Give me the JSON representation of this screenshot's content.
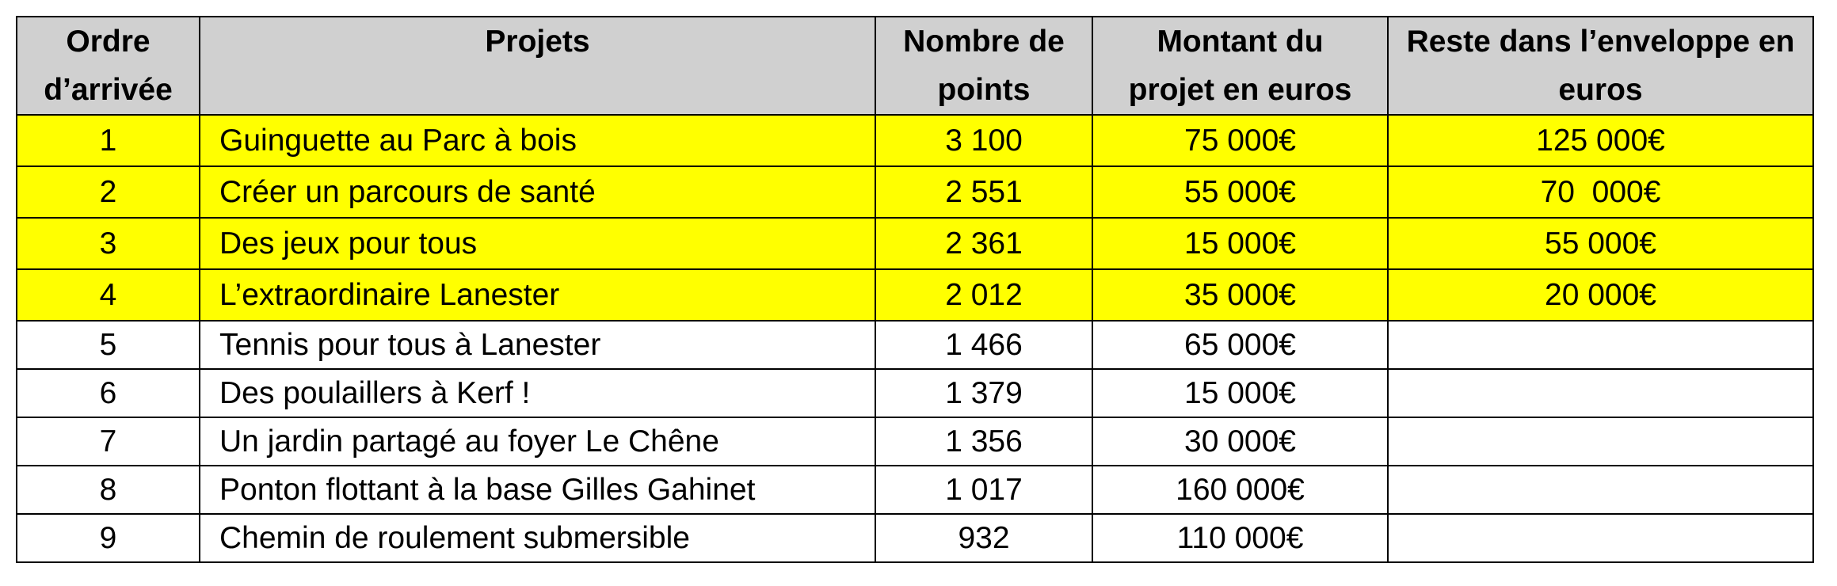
{
  "table": {
    "headers": {
      "ordre_line1": "Ordre",
      "ordre_line2": "d’arrivée",
      "projets": "Projets",
      "points_line1": "Nombre de",
      "points_line2": "points",
      "montant_line1": "Montant du",
      "montant_line2": "projet en euros",
      "reste_line1": "Reste dans l’enveloppe en",
      "reste_line2": "euros"
    },
    "rows": [
      {
        "ordre": "1",
        "projet": "Guinguette au Parc à bois",
        "points": "3 100",
        "montant": "75 000€",
        "reste": "125 000€"
      },
      {
        "ordre": "2",
        "projet": "Créer un parcours de santé",
        "points": "2 551",
        "montant": "55 000€",
        "reste": "70  000€"
      },
      {
        "ordre": "3",
        "projet": "Des jeux pour tous",
        "points": "2 361",
        "montant": "15 000€",
        "reste": "55 000€"
      },
      {
        "ordre": "4",
        "projet": "L’extraordinaire Lanester",
        "points": "2 012",
        "montant": "35 000€",
        "reste": "20 000€"
      },
      {
        "ordre": "5",
        "projet": "Tennis pour tous à Lanester",
        "points": "1 466",
        "montant": "65 000€",
        "reste": ""
      },
      {
        "ordre": "6",
        "projet": "Des poulaillers à Kerf !",
        "points": "1 379",
        "montant": "15 000€",
        "reste": ""
      },
      {
        "ordre": "7",
        "projet": "Un jardin partagé au foyer Le Chêne",
        "points": "1 356",
        "montant": "30 000€",
        "reste": ""
      },
      {
        "ordre": "8",
        "projet": "Ponton flottant à la base Gilles Gahinet",
        "points": "1 017",
        "montant": "160 000€",
        "reste": ""
      },
      {
        "ordre": "9",
        "projet": "Chemin de roulement submersible",
        "points": "932",
        "montant": "110 000€",
        "reste": ""
      }
    ]
  },
  "colors": {
    "header_background": "#d0d0d0",
    "funded_highlight": "#ffff00",
    "border": "#000000"
  }
}
